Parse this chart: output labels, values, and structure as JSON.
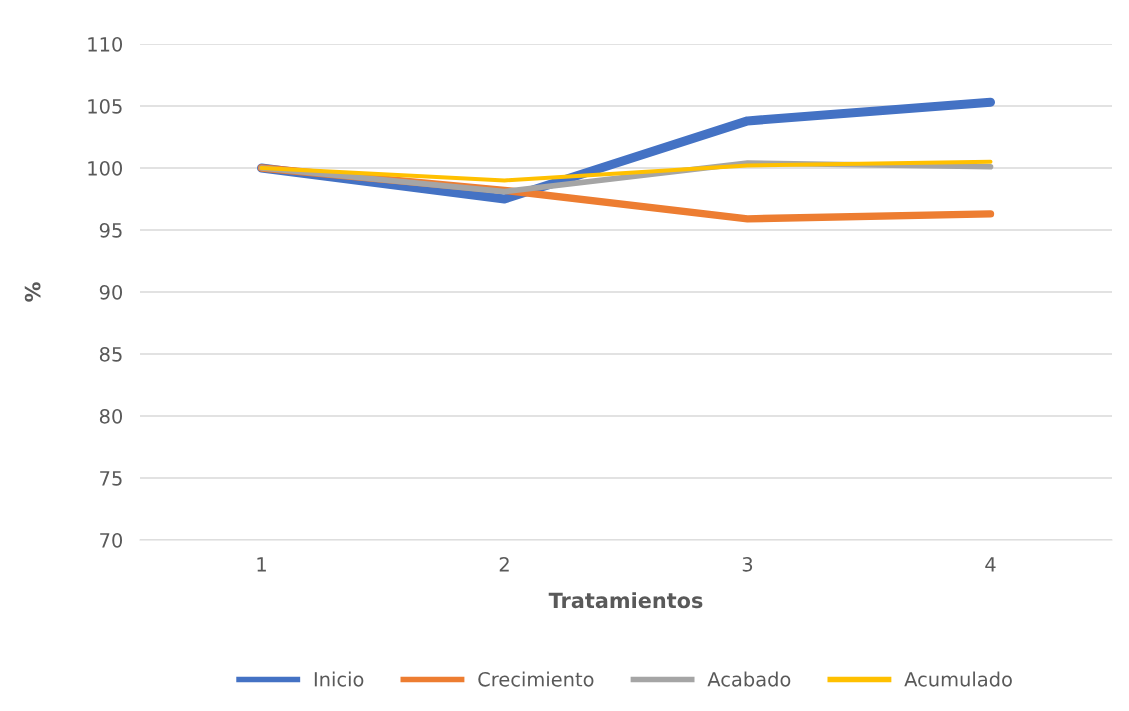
{
  "chart_data": {
    "type": "line",
    "xlabel": "Tratamientos",
    "ylabel": "%",
    "categories": [
      "1",
      "2",
      "3",
      "4"
    ],
    "series": [
      {
        "name": "Inicio",
        "color": "#4472c4",
        "values": [
          100,
          97.5,
          103.8,
          105.3
        ]
      },
      {
        "name": "Crecimiento",
        "color": "#ed7d31",
        "values": [
          100,
          98.2,
          95.9,
          96.3
        ]
      },
      {
        "name": "Acabado",
        "color": "#a5a5a5",
        "values": [
          100,
          98.1,
          100.4,
          100.1
        ]
      },
      {
        "name": "Acumulado",
        "color": "#ffc000",
        "values": [
          100,
          99.0,
          100.2,
          100.5
        ]
      }
    ],
    "ylim": [
      70,
      110
    ],
    "yticks": [
      70,
      75,
      80,
      85,
      90,
      95,
      100,
      105,
      110
    ],
    "grid": "y",
    "legend": "bottom",
    "marker": "none",
    "line_style": "solid"
  }
}
